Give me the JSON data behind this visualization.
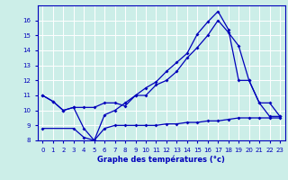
{
  "xlabel": "Graphe des températures (°c)",
  "bg_color": "#cceee8",
  "grid_color": "#ffffff",
  "line_color": "#0000bb",
  "xlim": [
    -0.5,
    23.5
  ],
  "ylim": [
    8,
    17
  ],
  "xticks": [
    0,
    1,
    2,
    3,
    4,
    5,
    6,
    7,
    8,
    9,
    10,
    11,
    12,
    13,
    14,
    15,
    16,
    17,
    18,
    19,
    20,
    21,
    22,
    23
  ],
  "yticks": [
    8,
    9,
    10,
    11,
    12,
    13,
    14,
    15,
    16
  ],
  "line1_x": [
    0,
    1,
    2,
    3,
    4,
    5,
    6,
    7,
    8,
    9,
    10,
    11,
    12,
    13,
    14,
    15,
    16,
    17,
    18,
    19,
    20,
    21,
    22,
    23
  ],
  "line1_y": [
    11.0,
    10.6,
    10.0,
    10.2,
    10.2,
    10.2,
    10.5,
    10.5,
    10.3,
    11.0,
    11.0,
    11.7,
    12.0,
    12.6,
    13.5,
    14.2,
    15.0,
    16.0,
    15.2,
    14.3,
    12.0,
    10.5,
    9.6,
    9.6
  ],
  "line2_x": [
    0,
    1,
    2,
    3,
    4,
    5,
    6,
    7,
    8,
    9,
    10,
    11,
    12,
    13,
    14,
    15,
    16,
    17,
    18,
    19,
    20,
    21,
    22,
    23
  ],
  "line2_y": [
    11.0,
    10.6,
    10.0,
    10.2,
    8.8,
    8.0,
    9.7,
    10.0,
    10.5,
    11.0,
    11.5,
    11.9,
    12.6,
    13.2,
    13.8,
    15.1,
    15.9,
    16.6,
    15.4,
    12.0,
    12.0,
    10.5,
    10.5,
    9.6
  ],
  "line3_x": [
    0,
    3,
    4,
    5,
    6,
    7,
    8,
    9,
    10,
    11,
    12,
    13,
    14,
    15,
    16,
    17,
    18,
    19,
    20,
    21,
    22,
    23
  ],
  "line3_y": [
    8.8,
    8.8,
    8.2,
    8.0,
    8.8,
    9.0,
    9.0,
    9.0,
    9.0,
    9.0,
    9.1,
    9.1,
    9.2,
    9.2,
    9.3,
    9.3,
    9.4,
    9.5,
    9.5,
    9.5,
    9.5,
    9.5
  ]
}
